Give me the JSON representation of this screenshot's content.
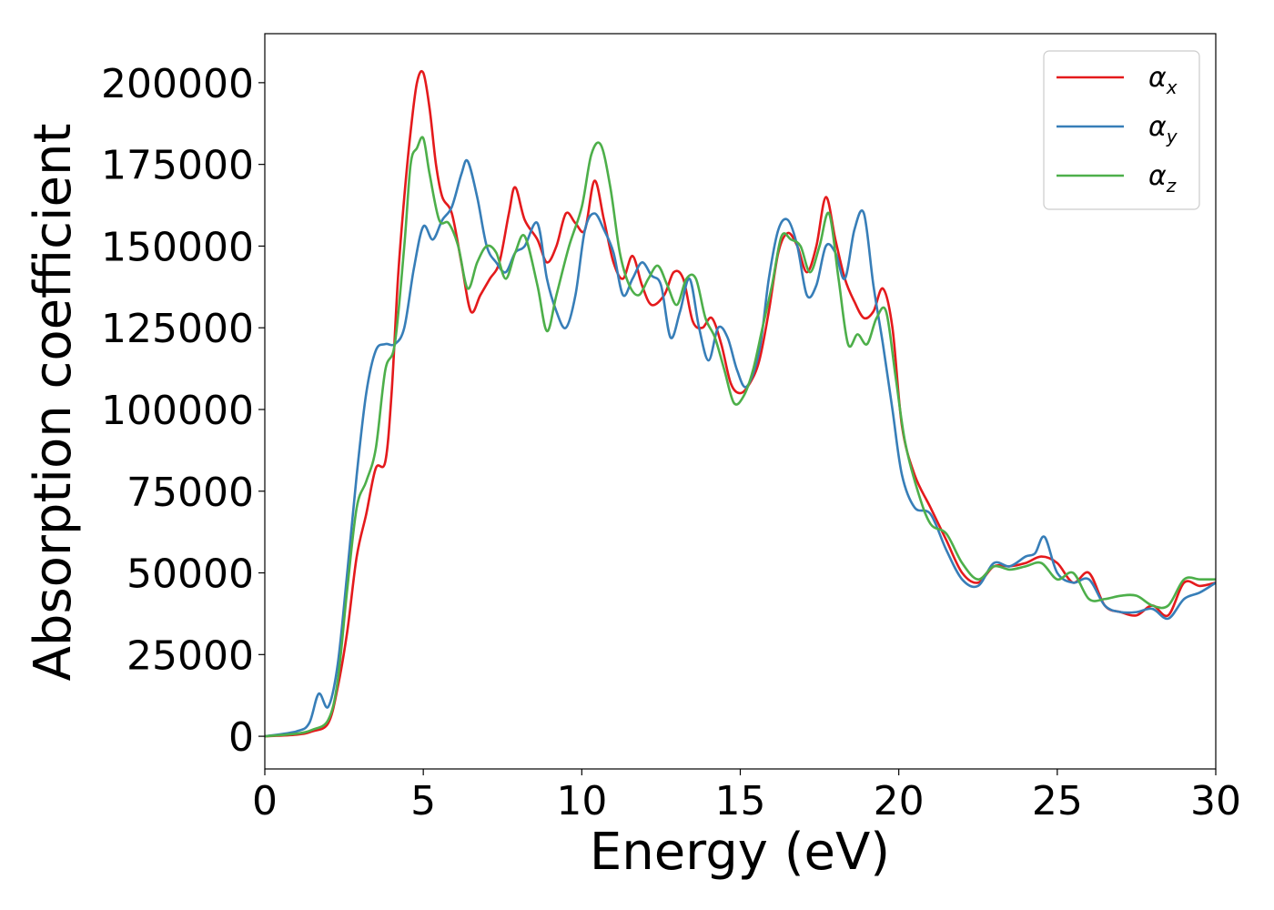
{
  "chart_data": {
    "type": "line",
    "title": "",
    "xlabel": "Energy (eV)",
    "ylabel": "Absorption coefficient",
    "xlim": [
      0,
      30
    ],
    "ylim": [
      -10000,
      215000
    ],
    "xticks": [
      0,
      5,
      10,
      15,
      20,
      25,
      30
    ],
    "xtick_labels": [
      "0",
      "5",
      "10",
      "15",
      "20",
      "25",
      "30"
    ],
    "yticks": [
      0,
      25000,
      50000,
      75000,
      100000,
      125000,
      150000,
      175000,
      200000
    ],
    "ytick_labels": [
      "0",
      "25000",
      "50000",
      "75000",
      "100000",
      "125000",
      "150000",
      "175000",
      "200000"
    ],
    "grid": false,
    "legend_position": "top-right",
    "series": [
      {
        "name": "αx",
        "symbol": "α",
        "subscript": "x",
        "color": "#e41a1c",
        "x": [
          0,
          1.0,
          1.5,
          2.0,
          2.3,
          2.6,
          2.9,
          3.2,
          3.5,
          3.8,
          4.0,
          4.2,
          4.4,
          4.6,
          4.8,
          5.0,
          5.2,
          5.4,
          5.6,
          5.9,
          6.2,
          6.5,
          6.8,
          7.1,
          7.4,
          7.7,
          7.9,
          8.2,
          8.6,
          8.9,
          9.2,
          9.5,
          9.8,
          10.1,
          10.4,
          10.7,
          11.0,
          11.3,
          11.6,
          11.9,
          12.2,
          12.6,
          12.9,
          13.2,
          13.5,
          13.8,
          14.1,
          14.4,
          14.7,
          15.0,
          15.3,
          15.6,
          15.9,
          16.2,
          16.5,
          16.8,
          17.1,
          17.4,
          17.7,
          18.0,
          18.3,
          18.6,
          18.9,
          19.2,
          19.5,
          19.8,
          20.1,
          20.5,
          21.0,
          21.5,
          22.0,
          22.5,
          23.0,
          23.5,
          24.0,
          24.5,
          25.0,
          25.5,
          26.0,
          26.5,
          27.0,
          27.5,
          28.0,
          28.5,
          29.0,
          29.5,
          30.0
        ],
        "values": [
          0,
          500,
          1500,
          4000,
          15000,
          32000,
          55000,
          68000,
          82000,
          84000,
          105000,
          140000,
          165000,
          185000,
          200000,
          203000,
          192000,
          175000,
          165000,
          160000,
          145000,
          130000,
          135000,
          140000,
          145000,
          160000,
          168000,
          158000,
          152000,
          145000,
          150000,
          160000,
          157000,
          155000,
          170000,
          158000,
          145000,
          140000,
          147000,
          138000,
          132000,
          135000,
          142000,
          140000,
          127000,
          125000,
          128000,
          120000,
          108000,
          105000,
          108000,
          115000,
          130000,
          148000,
          154000,
          150000,
          142000,
          150000,
          165000,
          152000,
          140000,
          133000,
          128000,
          130000,
          137000,
          125000,
          95000,
          80000,
          70000,
          60000,
          50000,
          47000,
          52000,
          52000,
          53000,
          55000,
          53000,
          47000,
          50000,
          40000,
          38000,
          37000,
          40000,
          37000,
          47000,
          46000,
          47000
        ]
      },
      {
        "name": "αy",
        "symbol": "α",
        "subscript": "y",
        "color": "#377eb8",
        "x": [
          0,
          1.0,
          1.4,
          1.7,
          2.0,
          2.3,
          2.6,
          2.9,
          3.2,
          3.5,
          3.8,
          4.1,
          4.4,
          4.7,
          5.0,
          5.3,
          5.6,
          5.9,
          6.2,
          6.4,
          6.7,
          7.0,
          7.3,
          7.6,
          7.9,
          8.2,
          8.6,
          8.9,
          9.2,
          9.5,
          9.8,
          10.1,
          10.4,
          10.7,
          11.0,
          11.3,
          11.6,
          11.9,
          12.2,
          12.5,
          12.8,
          13.1,
          13.4,
          13.7,
          14.0,
          14.3,
          14.6,
          14.9,
          15.2,
          15.6,
          15.9,
          16.2,
          16.5,
          16.8,
          17.1,
          17.4,
          17.7,
          18.0,
          18.3,
          18.6,
          18.9,
          19.2,
          19.5,
          19.8,
          20.1,
          20.5,
          21.0,
          21.5,
          22.0,
          22.5,
          23.0,
          23.5,
          24.0,
          24.3,
          24.6,
          25.0,
          25.5,
          26.0,
          26.5,
          27.0,
          27.5,
          28.0,
          28.5,
          29.0,
          29.5,
          30.0
        ],
        "values": [
          0,
          1500,
          4000,
          13000,
          9000,
          22000,
          50000,
          80000,
          105000,
          118000,
          120000,
          120000,
          125000,
          143000,
          156000,
          152000,
          158000,
          162000,
          172000,
          176000,
          165000,
          150000,
          145000,
          142000,
          148000,
          150000,
          157000,
          140000,
          130000,
          125000,
          135000,
          155000,
          160000,
          155000,
          148000,
          135000,
          140000,
          145000,
          141000,
          138000,
          122000,
          130000,
          140000,
          125000,
          115000,
          125000,
          122000,
          112000,
          107000,
          118000,
          140000,
          155000,
          158000,
          150000,
          135000,
          138000,
          150000,
          148000,
          140000,
          155000,
          160000,
          138000,
          120000,
          100000,
          80000,
          70000,
          68000,
          57000,
          48000,
          46000,
          53000,
          52000,
          55000,
          56000,
          61000,
          50000,
          47000,
          48000,
          40000,
          38000,
          38000,
          39000,
          36000,
          42000,
          44000,
          47000
        ]
      },
      {
        "name": "αz",
        "symbol": "α",
        "subscript": "z",
        "color": "#4daf4a",
        "x": [
          0,
          1.0,
          1.5,
          2.0,
          2.3,
          2.6,
          2.9,
          3.2,
          3.5,
          3.8,
          4.1,
          4.4,
          4.6,
          4.8,
          5.0,
          5.2,
          5.5,
          5.8,
          6.1,
          6.4,
          6.7,
          7.0,
          7.3,
          7.6,
          7.9,
          8.2,
          8.6,
          8.9,
          9.2,
          9.6,
          10.0,
          10.3,
          10.6,
          10.9,
          11.2,
          11.5,
          11.8,
          12.1,
          12.4,
          12.7,
          13.0,
          13.3,
          13.6,
          13.9,
          14.2,
          14.5,
          14.8,
          15.1,
          15.4,
          15.7,
          16.0,
          16.3,
          16.6,
          16.9,
          17.2,
          17.5,
          17.8,
          18.1,
          18.4,
          18.7,
          19.0,
          19.3,
          19.6,
          19.9,
          20.2,
          20.6,
          21.0,
          21.5,
          22.0,
          22.5,
          23.0,
          23.5,
          24.0,
          24.5,
          25.0,
          25.5,
          26.0,
          26.5,
          27.0,
          27.5,
          28.0,
          28.5,
          29.0,
          29.5,
          30.0
        ],
        "values": [
          0,
          800,
          2000,
          5000,
          17000,
          45000,
          70000,
          78000,
          88000,
          112000,
          120000,
          150000,
          175000,
          180000,
          183000,
          172000,
          158000,
          157000,
          150000,
          137000,
          145000,
          150000,
          148000,
          140000,
          148000,
          153000,
          138000,
          124000,
          135000,
          150000,
          162000,
          178000,
          181000,
          168000,
          148000,
          138000,
          135000,
          140000,
          144000,
          138000,
          132000,
          140000,
          140000,
          128000,
          122000,
          112000,
          102000,
          104000,
          112000,
          125000,
          138000,
          153000,
          152000,
          150000,
          142000,
          150000,
          160000,
          140000,
          120000,
          123000,
          120000,
          128000,
          130000,
          110000,
          90000,
          75000,
          65000,
          62000,
          53000,
          48000,
          52000,
          51000,
          52000,
          53000,
          48000,
          50000,
          42000,
          42000,
          43000,
          43000,
          40000,
          40000,
          48000,
          48000,
          48000
        ]
      }
    ]
  }
}
